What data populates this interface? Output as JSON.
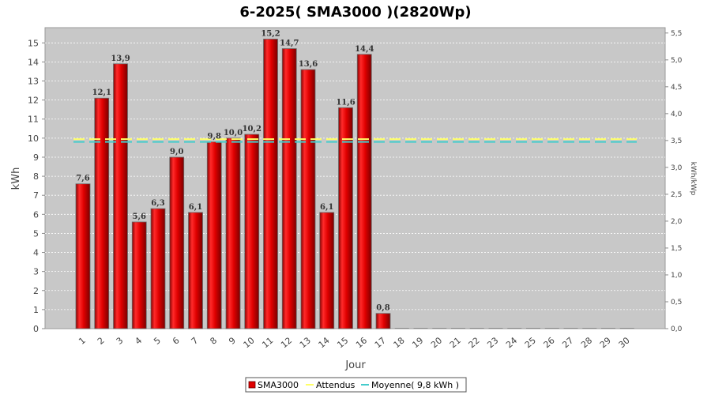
{
  "chart_data": {
    "type": "bar",
    "title": "6-2025( SMA3000 )(2820Wp)",
    "xlabel": "Jour",
    "ylabel": "kWh",
    "ylabel_right": "kWh/kWp",
    "ylim": [
      0,
      15.8
    ],
    "ylim_right": [
      0,
      5.6
    ],
    "grid": true,
    "legend_position": "bottom",
    "categories": [
      "1",
      "2",
      "3",
      "4",
      "5",
      "6",
      "7",
      "8",
      "9",
      "10",
      "11",
      "12",
      "13",
      "14",
      "15",
      "16",
      "17",
      "18",
      "19",
      "20",
      "21",
      "22",
      "23",
      "24",
      "25",
      "26",
      "27",
      "28",
      "29",
      "30"
    ],
    "yticks": [
      "0",
      "1",
      "2",
      "3",
      "4",
      "5",
      "6",
      "7",
      "8",
      "9",
      "10",
      "11",
      "12",
      "13",
      "14",
      "15"
    ],
    "yticks_right": [
      "0,0",
      "0,5",
      "1,0",
      "1,5",
      "2,0",
      "2,5",
      "3,0",
      "3,5",
      "4,0",
      "4,5",
      "5,0",
      "5,5"
    ],
    "series": [
      {
        "name": "SMA3000",
        "color": "#e00000",
        "values": [
          7.6,
          12.1,
          13.9,
          5.6,
          6.3,
          9.0,
          6.1,
          9.8,
          10.0,
          10.2,
          15.2,
          14.7,
          13.6,
          6.1,
          11.6,
          14.4,
          0.8,
          0,
          0,
          0,
          0,
          0,
          0,
          0,
          0,
          0,
          0,
          0,
          0,
          0
        ],
        "labels": [
          "7,6",
          "12,1",
          "13,9",
          "5,6",
          "6,3",
          "9,0",
          "6,1",
          "9,8",
          "10,0",
          "10,2",
          "15,2",
          "14,7",
          "13,6",
          "6,1",
          "11,6",
          "14,4",
          "0,8",
          "",
          "",
          "",
          "",
          "",
          "",
          "",
          "",
          "",
          "",
          "",
          "",
          ""
        ]
      },
      {
        "name": "Attendus",
        "color": "#ffff66",
        "value": 9.95
      },
      {
        "name": "Moyenne( 9,8 kWh )",
        "color": "#44cccc",
        "value": 9.8
      }
    ]
  }
}
